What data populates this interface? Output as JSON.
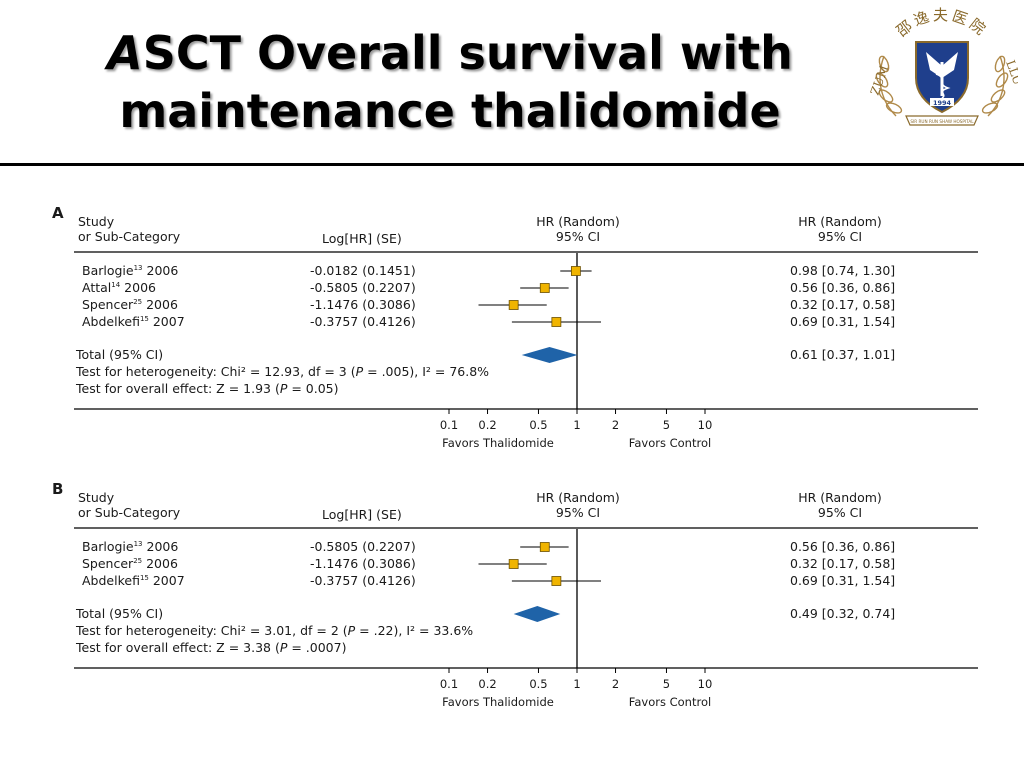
{
  "slide": {
    "title_line1_first": "A",
    "title_line1_rest": "SCT Overall survival with",
    "title_line2": "maintenance thalidomide"
  },
  "logo": {
    "text_top": "邵逸夫医院",
    "text_left": "ZUM",
    "text_right": "LLU",
    "year": "1994",
    "banner": "SIR RUN RUN SHAW HOSPITAL"
  },
  "colors": {
    "study_box": "#f0b400",
    "diamond": "#1f63a8",
    "line": "#000000"
  },
  "chart_data": [
    {
      "type": "forest",
      "panel_label": "A",
      "headers": {
        "study_line1": "Study",
        "study_line2": "or Sub-Category",
        "loghr": "Log[HR] (SE)",
        "hr_plot_line1": "HR (Random)",
        "hr_plot_line2": "95% CI",
        "hr_text_line1": "HR (Random)",
        "hr_text_line2": "95% CI"
      },
      "x_scale": "log",
      "xlim": [
        0.1,
        10
      ],
      "ticks": [
        {
          "value": 0.1,
          "label": "0.1"
        },
        {
          "value": 0.2,
          "label": "0.2"
        },
        {
          "value": 0.5,
          "label": "0.5"
        },
        {
          "value": 1,
          "label": "1"
        },
        {
          "value": 2,
          "label": "2"
        },
        {
          "value": 5,
          "label": "5"
        },
        {
          "value": 10,
          "label": "10"
        }
      ],
      "favors_left": "Favors Thalidomide",
      "favors_right": "Favors Control",
      "studies": [
        {
          "name": "Barlogie",
          "ref": "13",
          "year": "2006",
          "loghr": "-0.0182 (0.1451)",
          "hr": 0.98,
          "lo": 0.74,
          "hi": 1.3,
          "ci_text": "0.98 [0.74, 1.30]"
        },
        {
          "name": "Attal",
          "ref": "14",
          "year": "2006",
          "loghr": "-0.5805 (0.2207)",
          "hr": 0.56,
          "lo": 0.36,
          "hi": 0.86,
          "ci_text": "0.56 [0.36, 0.86]"
        },
        {
          "name": "Spencer",
          "ref": "25",
          "year": "2006",
          "loghr": "-1.1476 (0.3086)",
          "hr": 0.32,
          "lo": 0.17,
          "hi": 0.58,
          "ci_text": "0.32 [0.17, 0.58]"
        },
        {
          "name": "Abdelkefi",
          "ref": "15",
          "year": "2007",
          "loghr": "-0.3757 (0.4126)",
          "hr": 0.69,
          "lo": 0.31,
          "hi": 1.54,
          "ci_text": "0.69 [0.31, 1.54]"
        }
      ],
      "total": {
        "label": "Total (95% CI)",
        "hr": 0.61,
        "lo": 0.37,
        "hi": 1.01,
        "ci_text": "0.61 [0.37, 1.01]"
      },
      "heterogeneity": {
        "prefix": "Test for heterogeneity: Chi² = 12.93, df = 3 (",
        "p_symbol": "P",
        "suffix": " = .005), I² = 76.8%"
      },
      "overall_effect": {
        "prefix": "Test for overall effect: Z = 1.93 (",
        "p_symbol": "P",
        "suffix": " = 0.05)"
      }
    },
    {
      "type": "forest",
      "panel_label": "B",
      "headers": {
        "study_line1": "Study",
        "study_line2": "or Sub-Category",
        "loghr": "Log[HR] (SE)",
        "hr_plot_line1": "HR (Random)",
        "hr_plot_line2": "95% CI",
        "hr_text_line1": "HR (Random)",
        "hr_text_line2": "95% CI"
      },
      "x_scale": "log",
      "xlim": [
        0.1,
        10
      ],
      "ticks": [
        {
          "value": 0.1,
          "label": "0.1"
        },
        {
          "value": 0.2,
          "label": "0.2"
        },
        {
          "value": 0.5,
          "label": "0.5"
        },
        {
          "value": 1,
          "label": "1"
        },
        {
          "value": 2,
          "label": "2"
        },
        {
          "value": 5,
          "label": "5"
        },
        {
          "value": 10,
          "label": "10"
        }
      ],
      "favors_left": "Favors Thalidomide",
      "favors_right": "Favors Control",
      "studies": [
        {
          "name": "Barlogie",
          "ref": "13",
          "year": "2006",
          "loghr": "-0.5805 (0.2207)",
          "hr": 0.56,
          "lo": 0.36,
          "hi": 0.86,
          "ci_text": "0.56 [0.36, 0.86]"
        },
        {
          "name": "Spencer",
          "ref": "25",
          "year": "2006",
          "loghr": "-1.1476 (0.3086)",
          "hr": 0.32,
          "lo": 0.17,
          "hi": 0.58,
          "ci_text": "0.32 [0.17, 0.58]"
        },
        {
          "name": "Abdelkefi",
          "ref": "15",
          "year": "2007",
          "loghr": "-0.3757 (0.4126)",
          "hr": 0.69,
          "lo": 0.31,
          "hi": 1.54,
          "ci_text": "0.69 [0.31, 1.54]"
        }
      ],
      "total": {
        "label": "Total (95% CI)",
        "hr": 0.49,
        "lo": 0.32,
        "hi": 0.74,
        "ci_text": "0.49 [0.32, 0.74]"
      },
      "heterogeneity": {
        "prefix": "Test for heterogeneity: Chi² = 3.01, df = 2 (",
        "p_symbol": "P",
        "suffix": " = .22), I² = 33.6%"
      },
      "overall_effect": {
        "prefix": "Test for overall effect: Z = 3.38 (",
        "p_symbol": "P",
        "suffix": " = .0007)"
      }
    }
  ]
}
